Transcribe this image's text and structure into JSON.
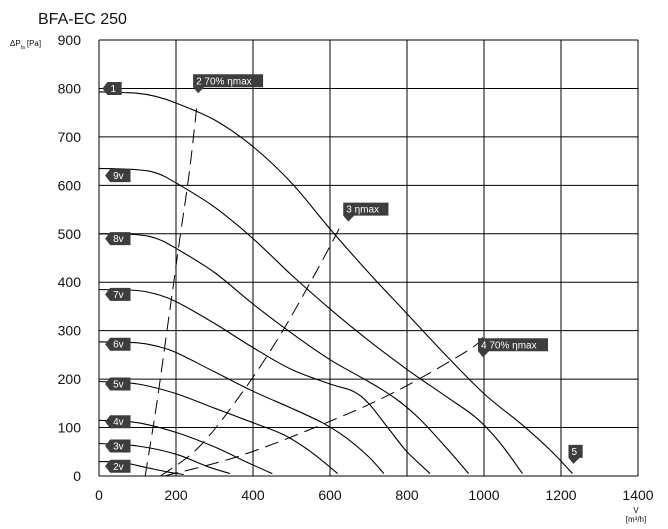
{
  "chart_data": {
    "type": "line",
    "title": "BFA-EC 250",
    "ylabel_main": "ΔP",
    "ylabel_sub": "fa",
    "ylabel_unit": "[Pa]",
    "xlabel_main": "V",
    "xlabel_unit": "[m³/h]",
    "xlim": [
      0,
      1400
    ],
    "ylim": [
      0,
      900
    ],
    "x_ticks": [
      "0",
      "200",
      "400",
      "600",
      "800",
      "1000",
      "1200",
      "1400"
    ],
    "y_ticks": [
      "0",
      "100",
      "200",
      "300",
      "400",
      "500",
      "600",
      "700",
      "800",
      "900"
    ],
    "grid": true,
    "series": [
      {
        "name": "1",
        "points": [
          [
            0,
            793
          ],
          [
            100,
            790
          ],
          [
            150,
            783
          ],
          [
            200,
            770
          ],
          [
            300,
            735
          ],
          [
            400,
            680
          ],
          [
            500,
            605
          ],
          [
            600,
            510
          ],
          [
            700,
            420
          ],
          [
            800,
            335
          ],
          [
            900,
            250
          ],
          [
            1000,
            170
          ],
          [
            1100,
            105
          ],
          [
            1170,
            55
          ],
          [
            1230,
            5
          ]
        ]
      },
      {
        "name": "9v",
        "points": [
          [
            0,
            635
          ],
          [
            100,
            632
          ],
          [
            150,
            625
          ],
          [
            200,
            605
          ],
          [
            300,
            555
          ],
          [
            400,
            490
          ],
          [
            500,
            415
          ],
          [
            600,
            345
          ],
          [
            700,
            280
          ],
          [
            800,
            220
          ],
          [
            900,
            165
          ],
          [
            980,
            120
          ],
          [
            1040,
            70
          ],
          [
            1100,
            5
          ]
        ]
      },
      {
        "name": "8v",
        "points": [
          [
            0,
            500
          ],
          [
            100,
            498
          ],
          [
            150,
            490
          ],
          [
            200,
            470
          ],
          [
            300,
            420
          ],
          [
            400,
            355
          ],
          [
            500,
            295
          ],
          [
            600,
            240
          ],
          [
            700,
            195
          ],
          [
            770,
            160
          ],
          [
            830,
            120
          ],
          [
            900,
            60
          ],
          [
            960,
            5
          ]
        ]
      },
      {
        "name": "7v",
        "points": [
          [
            0,
            385
          ],
          [
            100,
            383
          ],
          [
            150,
            375
          ],
          [
            200,
            360
          ],
          [
            300,
            315
          ],
          [
            400,
            265
          ],
          [
            500,
            220
          ],
          [
            600,
            190
          ],
          [
            660,
            175
          ],
          [
            700,
            150
          ],
          [
            750,
            100
          ],
          [
            800,
            50
          ],
          [
            860,
            5
          ]
        ]
      },
      {
        "name": "6v",
        "points": [
          [
            0,
            277
          ],
          [
            100,
            275
          ],
          [
            150,
            268
          ],
          [
            200,
            255
          ],
          [
            300,
            215
          ],
          [
            400,
            175
          ],
          [
            500,
            140
          ],
          [
            580,
            110
          ],
          [
            640,
            80
          ],
          [
            700,
            40
          ],
          [
            740,
            5
          ]
        ]
      },
      {
        "name": "5v",
        "points": [
          [
            0,
            195
          ],
          [
            100,
            190
          ],
          [
            200,
            170
          ],
          [
            300,
            140
          ],
          [
            400,
            110
          ],
          [
            480,
            85
          ],
          [
            550,
            50
          ],
          [
            620,
            5
          ]
        ]
      },
      {
        "name": "4v",
        "points": [
          [
            0,
            115
          ],
          [
            100,
            110
          ],
          [
            200,
            90
          ],
          [
            300,
            60
          ],
          [
            380,
            30
          ],
          [
            450,
            5
          ]
        ]
      },
      {
        "name": "3v",
        "points": [
          [
            0,
            67
          ],
          [
            100,
            62
          ],
          [
            200,
            45
          ],
          [
            280,
            20
          ],
          [
            340,
            5
          ]
        ]
      },
      {
        "name": "2v",
        "points": [
          [
            0,
            30
          ],
          [
            60,
            28
          ],
          [
            120,
            18
          ],
          [
            180,
            8
          ],
          [
            220,
            3
          ]
        ]
      }
    ],
    "efficiency_lines": [
      {
        "name": "2 70% ηmax",
        "points": [
          [
            120,
            0
          ],
          [
            150,
            150
          ],
          [
            180,
            320
          ],
          [
            210,
            490
          ],
          [
            235,
            630
          ],
          [
            255,
            770
          ]
        ]
      },
      {
        "name": "3 ηmax",
        "points": [
          [
            160,
            0
          ],
          [
            260,
            60
          ],
          [
            370,
            170
          ],
          [
            470,
            290
          ],
          [
            570,
            430
          ],
          [
            630,
            520
          ]
        ]
      },
      {
        "name": "4 70% ηmax",
        "points": [
          [
            170,
            0
          ],
          [
            360,
            40
          ],
          [
            560,
            100
          ],
          [
            760,
            170
          ],
          [
            960,
            260
          ],
          [
            1000,
            290
          ]
        ]
      }
    ],
    "annotations": [
      {
        "label": "1",
        "x": 30,
        "y": 800,
        "pointer": "left"
      },
      {
        "label": "9v",
        "x": 45,
        "y": 620,
        "pointer": "left"
      },
      {
        "label": "8v",
        "x": 45,
        "y": 490,
        "pointer": "left"
      },
      {
        "label": "7v",
        "x": 45,
        "y": 375,
        "pointer": "left"
      },
      {
        "label": "6v",
        "x": 45,
        "y": 272,
        "pointer": "left"
      },
      {
        "label": "5v",
        "x": 45,
        "y": 190,
        "pointer": "left"
      },
      {
        "label": "4v",
        "x": 45,
        "y": 112,
        "pointer": "left"
      },
      {
        "label": "3v",
        "x": 45,
        "y": 62,
        "pointer": "left"
      },
      {
        "label": "2v",
        "x": 45,
        "y": 20,
        "pointer": "left"
      },
      {
        "label": "2 70% ηmax",
        "x": 260,
        "y": 790,
        "pointer": "down"
      },
      {
        "label": "3 ηmax",
        "x": 650,
        "y": 525,
        "pointer": "down"
      },
      {
        "label": "4 70% ηmax",
        "x": 1000,
        "y": 245,
        "pointer": "down"
      },
      {
        "label": "5",
        "x": 1235,
        "y": 25,
        "pointer": "down"
      }
    ]
  }
}
